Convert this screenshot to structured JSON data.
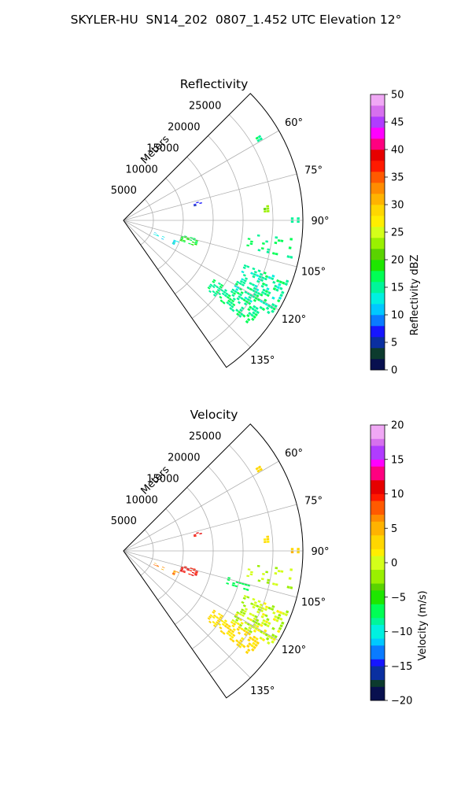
{
  "suptitle": "SKYLER-HU  SN14_202  0807_1.452 UTC Elevation 12°",
  "chart_data": [
    {
      "type": "heatmap",
      "title": "Reflectivity",
      "projection": "polar-sector",
      "radial_axis_label": "Meters",
      "radial_ticks": [
        "5000",
        "10000",
        "15000",
        "20000",
        "25000"
      ],
      "radial_tick_values": [
        5000,
        10000,
        15000,
        20000,
        25000
      ],
      "rmax": 30000,
      "angle_range_deg": [
        45,
        145
      ],
      "angle_ticks": [
        "60°",
        "75°",
        "90°",
        "105°",
        "120°",
        "135°"
      ],
      "angle_tick_values": [
        60,
        75,
        90,
        105,
        120,
        135
      ],
      "grid": true,
      "colorbar": {
        "label": "Reflectivity dBZ",
        "min": 0,
        "max": 50,
        "ticks": [
          "0",
          "5",
          "10",
          "15",
          "20",
          "25",
          "30",
          "35",
          "40",
          "45",
          "50"
        ],
        "tick_values": [
          0,
          5,
          10,
          15,
          20,
          25,
          30,
          35,
          40,
          45,
          50
        ],
        "stops": [
          {
            "v": 0,
            "c": "#08104f"
          },
          {
            "v": 2,
            "c": "#0c3b2e"
          },
          {
            "v": 4,
            "c": "#0a2fa0"
          },
          {
            "v": 6,
            "c": "#1616ff"
          },
          {
            "v": 8,
            "c": "#0a7bff"
          },
          {
            "v": 10,
            "c": "#00c8ff"
          },
          {
            "v": 12,
            "c": "#00f0e0"
          },
          {
            "v": 14,
            "c": "#00f59a"
          },
          {
            "v": 16,
            "c": "#00ff55"
          },
          {
            "v": 18,
            "c": "#1ee600"
          },
          {
            "v": 20,
            "c": "#5ad300"
          },
          {
            "v": 22,
            "c": "#9af000"
          },
          {
            "v": 24,
            "c": "#d4ff1a"
          },
          {
            "v": 26,
            "c": "#ffee00"
          },
          {
            "v": 28,
            "c": "#ffd700"
          },
          {
            "v": 30,
            "c": "#ffb300"
          },
          {
            "v": 32,
            "c": "#ff8c00"
          },
          {
            "v": 34,
            "c": "#ff5a00"
          },
          {
            "v": 36,
            "c": "#ff1a00"
          },
          {
            "v": 38,
            "c": "#e60000"
          },
          {
            "v": 40,
            "c": "#ff0080"
          },
          {
            "v": 42,
            "c": "#ff00ff"
          },
          {
            "v": 44,
            "c": "#b03cff"
          },
          {
            "v": 46,
            "c": "#d670ee"
          },
          {
            "v": 48,
            "c": "#f0a8f5"
          },
          {
            "v": 50,
            "c": "#ffe6ff"
          }
        ]
      },
      "echo_regions": [
        {
          "az": [
            123,
            130
          ],
          "r": [
            18000,
            27500
          ],
          "density": 0.55,
          "v": [
            14,
            17
          ]
        },
        {
          "az": [
            110,
            123
          ],
          "r": [
            21500,
            29500
          ],
          "density": 0.45,
          "v": [
            13,
            17
          ]
        },
        {
          "az": [
            96,
            103
          ],
          "r": [
            21000,
            29500
          ],
          "density": 0.2,
          "v": [
            14,
            18
          ]
        },
        {
          "az": [
            104,
            110
          ],
          "r": [
            10000,
            13000
          ],
          "density": 0.4,
          "v": [
            17,
            19
          ]
        },
        {
          "az": [
            84,
            87
          ],
          "r": [
            23500,
            24500
          ],
          "density": 0.6,
          "v": [
            21,
            24
          ]
        },
        {
          "az": [
            76,
            80
          ],
          "r": [
            12000,
            13500
          ],
          "density": 0.3,
          "v": [
            4,
            8
          ]
        },
        {
          "az": [
            111,
            116
          ],
          "r": [
            4500,
            10500
          ],
          "density": 0.25,
          "v": [
            10,
            16
          ]
        },
        {
          "az": [
            57,
            60
          ],
          "r": [
            26000,
            27000
          ],
          "density": 0.4,
          "v": [
            15,
            17
          ]
        },
        {
          "az": [
            88,
            92
          ],
          "r": [
            28000,
            29500
          ],
          "density": 0.3,
          "v": [
            13,
            16
          ]
        }
      ]
    },
    {
      "type": "heatmap",
      "title": "Velocity",
      "projection": "polar-sector",
      "radial_axis_label": "Meters",
      "radial_ticks": [
        "5000",
        "10000",
        "15000",
        "20000",
        "25000"
      ],
      "radial_tick_values": [
        5000,
        10000,
        15000,
        20000,
        25000
      ],
      "rmax": 30000,
      "angle_range_deg": [
        45,
        145
      ],
      "angle_ticks": [
        "60°",
        "75°",
        "90°",
        "105°",
        "120°",
        "135°"
      ],
      "angle_tick_values": [
        60,
        75,
        90,
        105,
        120,
        135
      ],
      "grid": true,
      "colorbar": {
        "label": "Velocity (m/s)",
        "min": -20,
        "max": 20,
        "ticks": [
          "−20",
          "−15",
          "−10",
          "−5",
          "0",
          "5",
          "10",
          "15",
          "20"
        ],
        "tick_values": [
          -20,
          -15,
          -10,
          -5,
          0,
          5,
          10,
          15,
          20
        ],
        "stops": [
          {
            "v": -20,
            "c": "#08104f"
          },
          {
            "v": -18,
            "c": "#0c3b2e"
          },
          {
            "v": -17,
            "c": "#0a2fa0"
          },
          {
            "v": -15,
            "c": "#1616ff"
          },
          {
            "v": -14,
            "c": "#0a7bff"
          },
          {
            "v": -12,
            "c": "#00c8ff"
          },
          {
            "v": -11,
            "c": "#00f0e0"
          },
          {
            "v": -9,
            "c": "#00f59a"
          },
          {
            "v": -8,
            "c": "#00ff55"
          },
          {
            "v": -6,
            "c": "#1ee600"
          },
          {
            "v": -4,
            "c": "#5ad300"
          },
          {
            "v": -3,
            "c": "#9af000"
          },
          {
            "v": -1,
            "c": "#d4ff1a"
          },
          {
            "v": 1,
            "c": "#ffee00"
          },
          {
            "v": 2,
            "c": "#ffd700"
          },
          {
            "v": 4,
            "c": "#ffb300"
          },
          {
            "v": 6,
            "c": "#ff8c00"
          },
          {
            "v": 7,
            "c": "#ff5a00"
          },
          {
            "v": 9,
            "c": "#ff1a00"
          },
          {
            "v": 10,
            "c": "#e60000"
          },
          {
            "v": 12,
            "c": "#ff0080"
          },
          {
            "v": 14,
            "c": "#ff00ff"
          },
          {
            "v": 15,
            "c": "#b03cff"
          },
          {
            "v": 17,
            "c": "#d670ee"
          },
          {
            "v": 18,
            "c": "#f0a8f5"
          },
          {
            "v": 20,
            "c": "#ffe6ff"
          }
        ]
      },
      "echo_regions": [
        {
          "az": [
            123,
            130
          ],
          "r": [
            18000,
            27500
          ],
          "density": 0.55,
          "v": [
            1,
            4
          ]
        },
        {
          "az": [
            110,
            123
          ],
          "r": [
            21500,
            29500
          ],
          "density": 0.45,
          "v": [
            -3,
            2
          ]
        },
        {
          "az": [
            96,
            103
          ],
          "r": [
            21000,
            29500
          ],
          "density": 0.2,
          "v": [
            -3,
            1
          ]
        },
        {
          "az": [
            104,
            110
          ],
          "r": [
            10000,
            13000
          ],
          "density": 0.4,
          "v": [
            9,
            11
          ]
        },
        {
          "az": [
            84,
            87
          ],
          "r": [
            23500,
            24500
          ],
          "density": 0.6,
          "v": [
            1,
            3
          ]
        },
        {
          "az": [
            76,
            80
          ],
          "r": [
            12000,
            13500
          ],
          "density": 0.3,
          "v": [
            9,
            11
          ]
        },
        {
          "az": [
            111,
            116
          ],
          "r": [
            4500,
            10500
          ],
          "density": 0.25,
          "v": [
            4,
            10
          ]
        },
        {
          "az": [
            57,
            60
          ],
          "r": [
            26000,
            27000
          ],
          "density": 0.4,
          "v": [
            2,
            4
          ]
        },
        {
          "az": [
            88,
            92
          ],
          "r": [
            28000,
            29500
          ],
          "density": 0.3,
          "v": [
            2,
            5
          ]
        },
        {
          "az": [
            104,
            108
          ],
          "r": [
            18000,
            23000
          ],
          "density": 0.35,
          "v": [
            -8,
            -6
          ]
        }
      ]
    }
  ]
}
